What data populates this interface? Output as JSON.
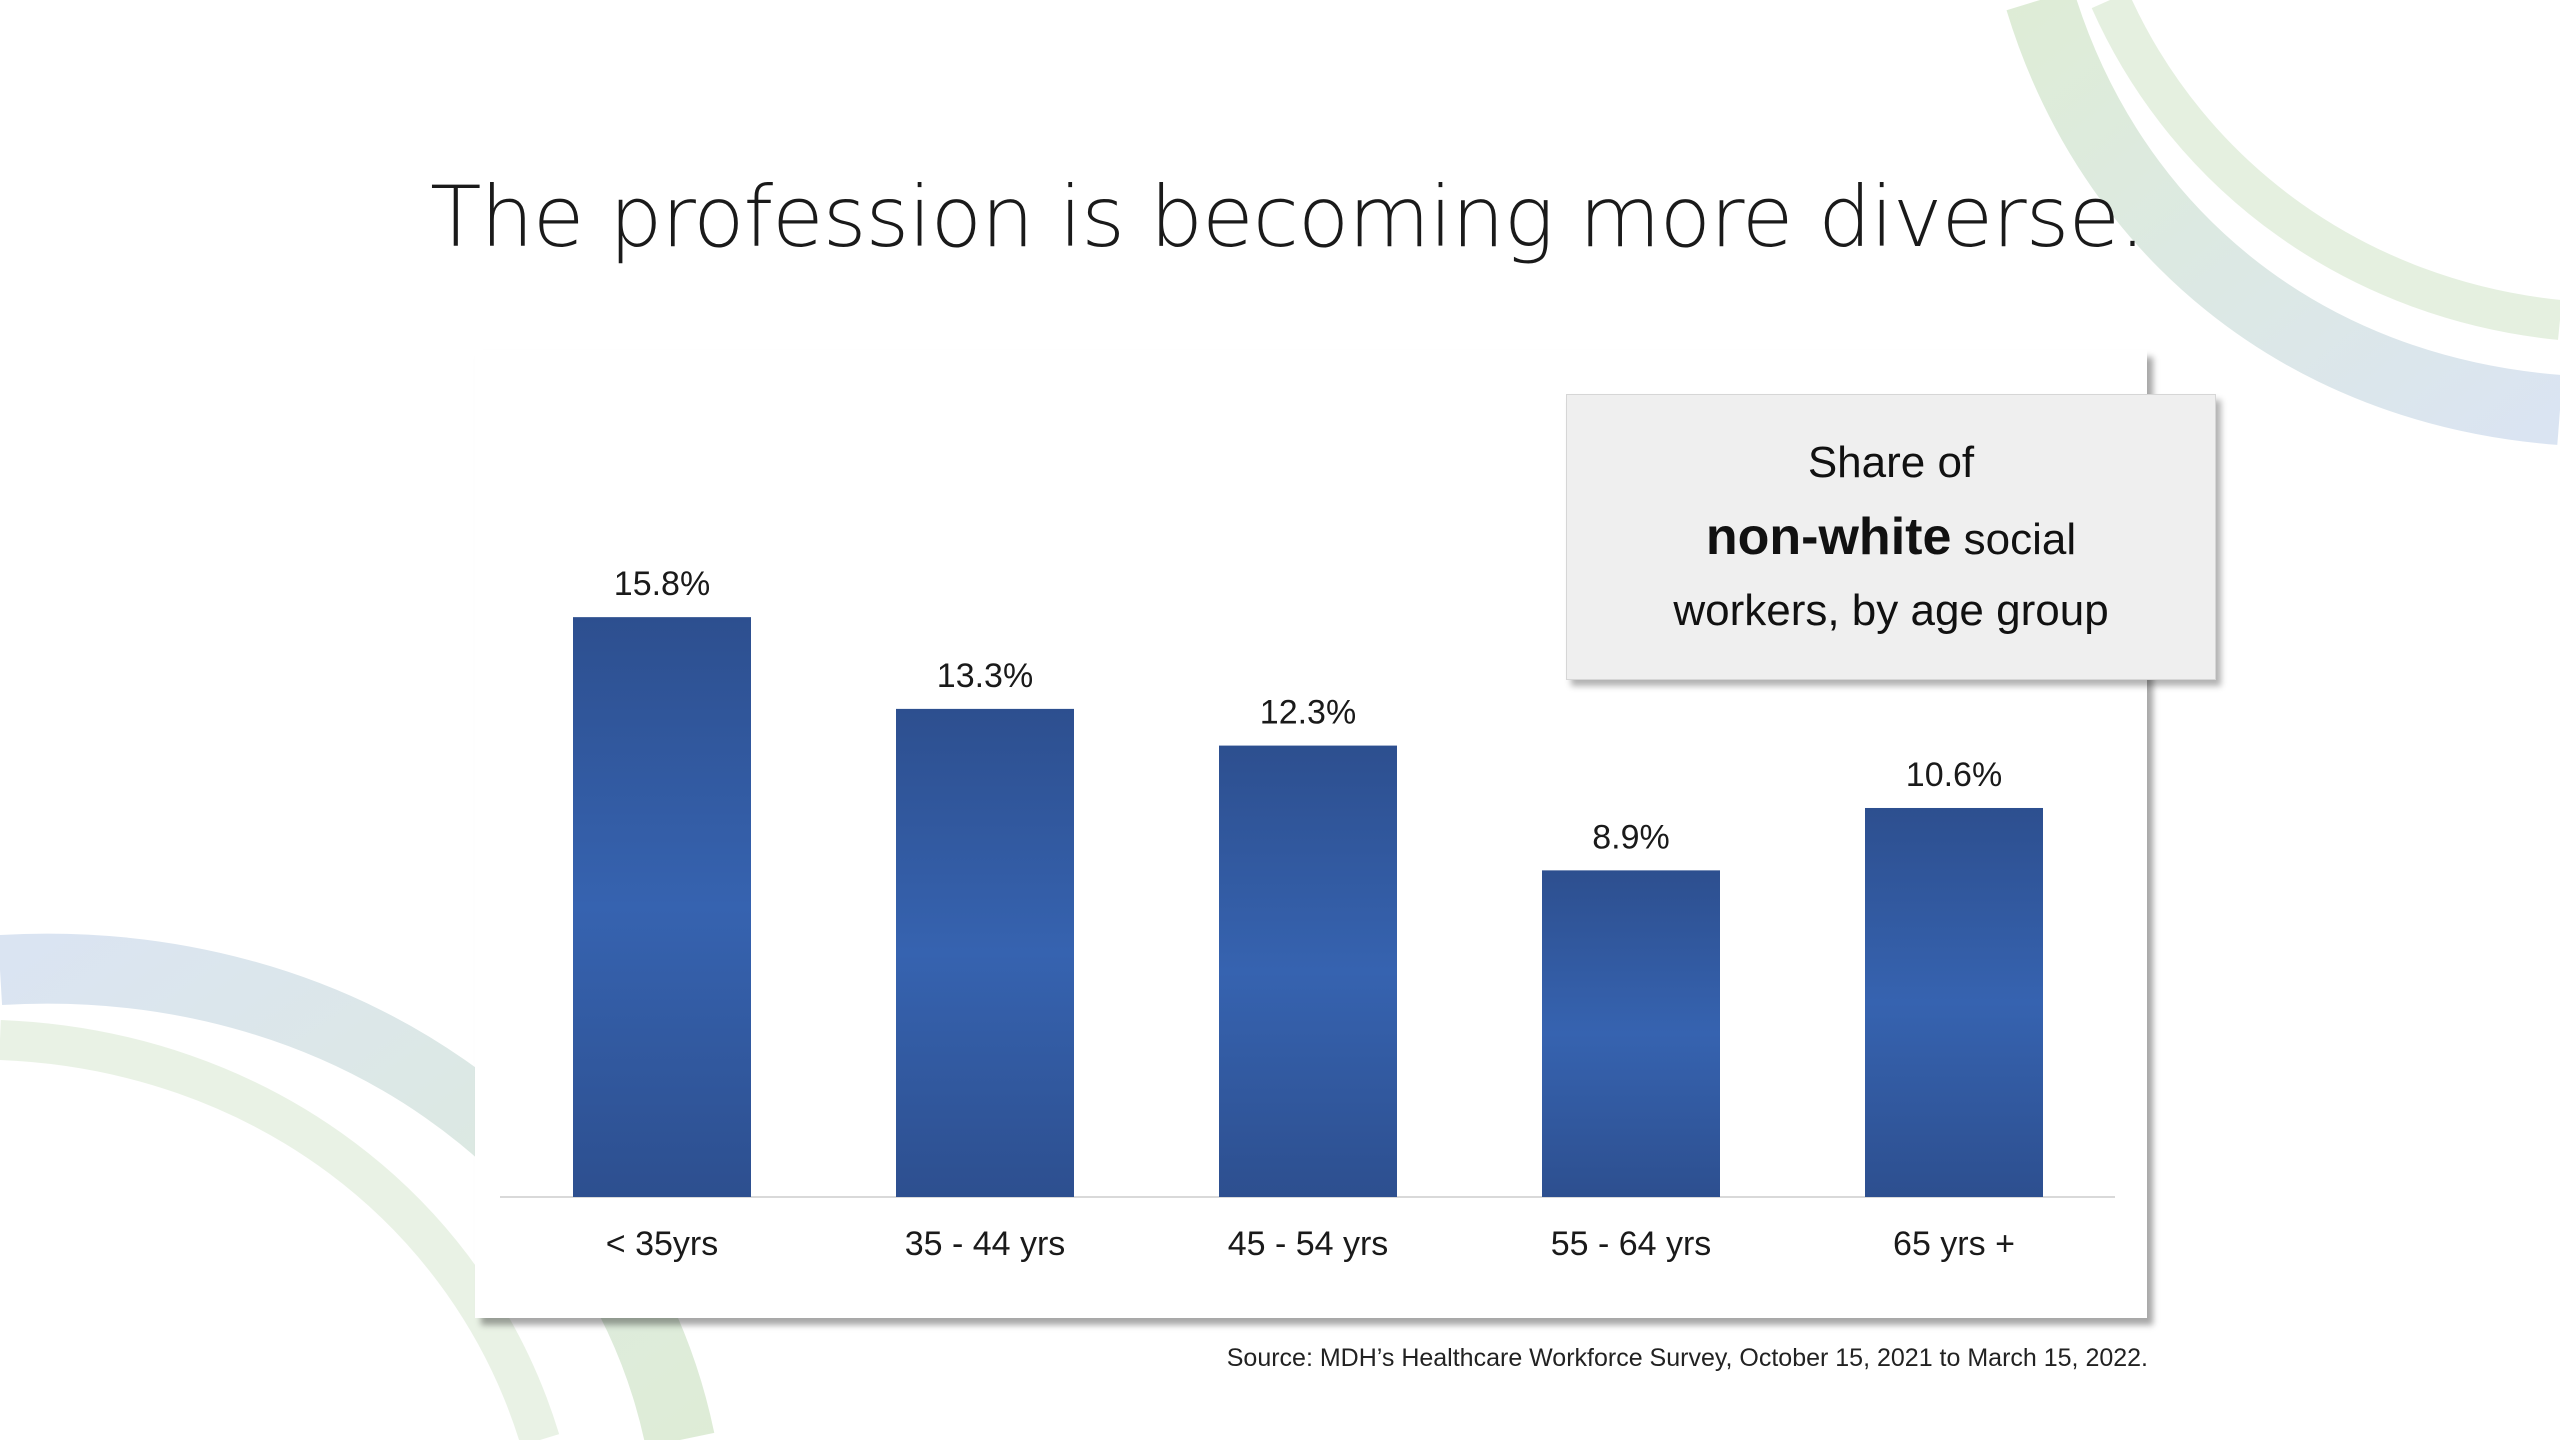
{
  "slide": {
    "title": "The profession is becoming more diverse.",
    "legend": {
      "line1": "Share of",
      "bold": "non-white",
      "line2_rest": " social",
      "line3": "workers, by age group"
    },
    "source": "Source: MDH’s Healthcare Workforce Survey, October 15, 2021 to March 15, 2022."
  },
  "colors": {
    "bar_dark": "#2d4f8f",
    "bar_light": "#3663b0",
    "accent_green": "#8dbb77",
    "accent_blue": "#9db8dc"
  },
  "chart_data": {
    "type": "bar",
    "categories": [
      "< 35yrs",
      "35 - 44 yrs",
      "45 - 54 yrs",
      "55 - 64 yrs",
      "65 yrs +"
    ],
    "values": [
      15.8,
      13.3,
      12.3,
      8.9,
      10.6
    ],
    "value_labels": [
      "15.8%",
      "13.3%",
      "12.3%",
      "8.9%",
      "10.6%"
    ],
    "title": "Share of non-white social workers, by age group",
    "xlabel": "",
    "ylabel": "",
    "ylim": [
      0,
      20
    ],
    "grid": false,
    "legend_position": "top-right"
  }
}
